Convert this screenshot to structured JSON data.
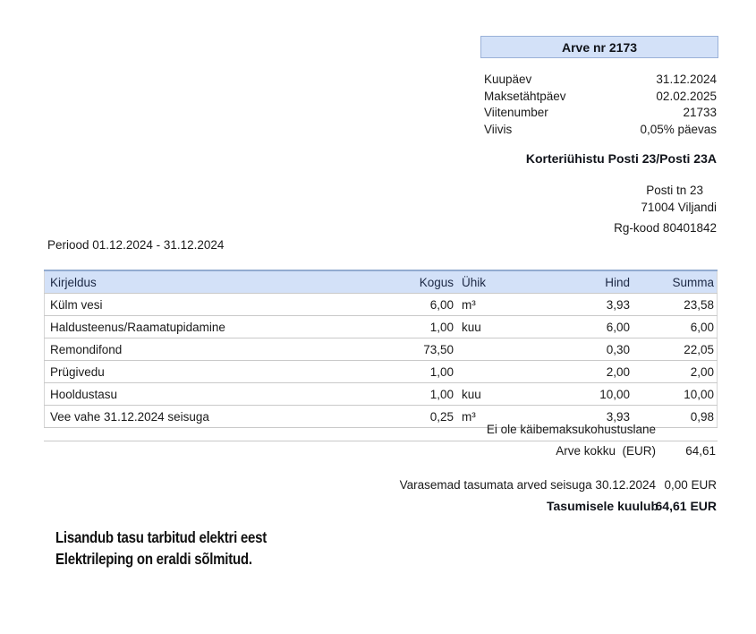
{
  "invoice": {
    "title": "Arve nr 2173",
    "meta": [
      {
        "label": "Kuupäev",
        "value": "31.12.2024"
      },
      {
        "label": "Maksetähtpäev",
        "value": "02.02.2025"
      },
      {
        "label": "Viitenumber",
        "value": "21733"
      },
      {
        "label": "Viivis",
        "value": "0,05% päevas"
      }
    ],
    "company": "Korteriühistu Posti 23/Posti 23A",
    "address": {
      "street": "Posti tn 23",
      "city": "71004 Viljandi"
    },
    "reg_code": "Rg-kood 80401842",
    "period": "Periood 01.12.2024 - 31.12.2024"
  },
  "table": {
    "headers": {
      "desc": "Kirjeldus",
      "qty": "Kogus",
      "unit": "Ühik",
      "price": "Hind",
      "sum": "Summa"
    },
    "rows": [
      {
        "desc": "Külm vesi",
        "qty": "6,00",
        "unit": "m³",
        "price": "3,93",
        "sum": "23,58"
      },
      {
        "desc": "Haldusteenus/Raamatupidamine",
        "qty": "1,00",
        "unit": "kuu",
        "price": "6,00",
        "sum": "6,00"
      },
      {
        "desc": "Remondifond",
        "qty": "73,50",
        "unit": "",
        "price": "0,30",
        "sum": "22,05"
      },
      {
        "desc": "Prügivedu",
        "qty": "1,00",
        "unit": "",
        "price": "2,00",
        "sum": "2,00"
      },
      {
        "desc": "Hooldustasu",
        "qty": "1,00",
        "unit": "kuu",
        "price": "10,00",
        "sum": "10,00"
      },
      {
        "desc": "Vee vahe 31.12.2024 seisuga",
        "qty": "0,25",
        "unit": "m³",
        "price": "3,93",
        "sum": "0,98"
      }
    ]
  },
  "totals": {
    "vat_note": "Ei ole käibemaksukohustuslane",
    "total_label": "Arve kokku  (EUR)",
    "total_value": "64,61",
    "previous_label": "Varasemad tasumata arved seisuga 30.12.2024",
    "previous_value": "0,00 EUR",
    "due_label": "Tasumisele kuulub",
    "due_value": "64,61 EUR"
  },
  "note": {
    "line1": "Lisandub tasu tarbitud elektri eest",
    "line2": "Elektrileping on eraldi sõlmitud."
  },
  "colors": {
    "accent_fill": "#d3e1f8",
    "accent_border": "#9ab1d8",
    "header_top_border": "#92abd0",
    "row_border": "#c9c9c9",
    "body_text": "#1a1a1a",
    "header_text": "#1c2844"
  }
}
